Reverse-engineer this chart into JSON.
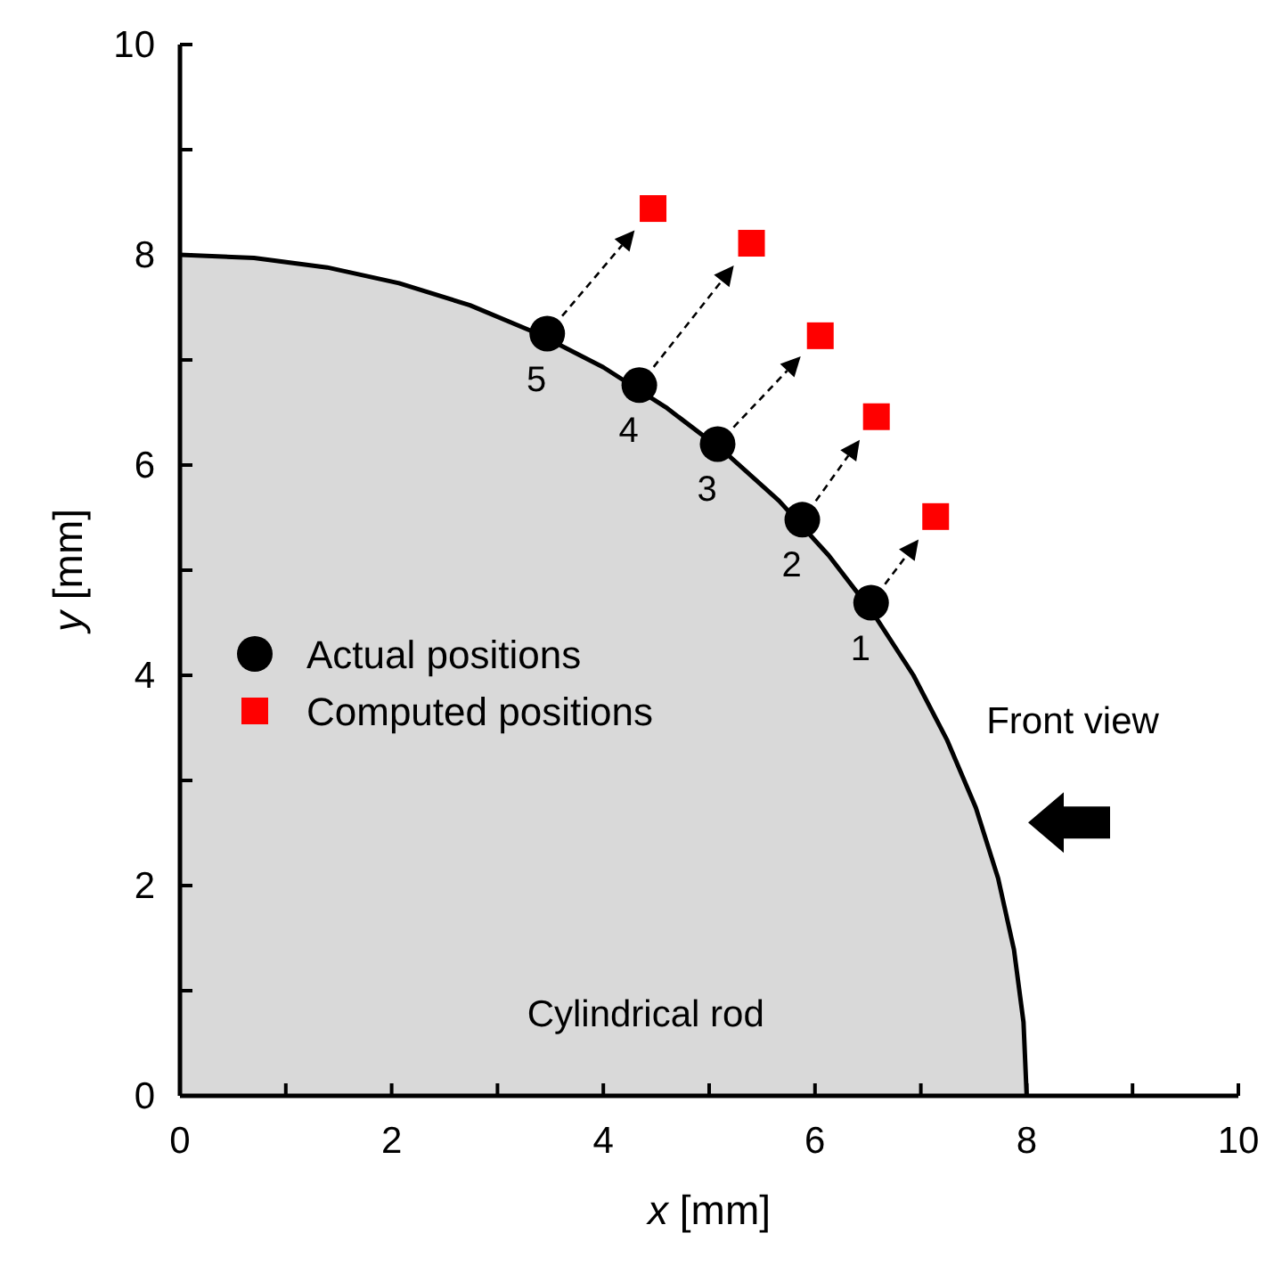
{
  "chart_data": {
    "type": "scatter",
    "xlabel": "x [mm]",
    "ylabel": "y [mm]",
    "xlim": [
      0,
      10
    ],
    "ylim": [
      0,
      10
    ],
    "xticks": [
      0,
      {
        "value": 1,
        "label": null
      },
      2,
      {
        "value": 3,
        "label": null
      },
      4,
      {
        "value": 5,
        "label": null
      },
      6,
      {
        "value": 7,
        "label": null
      },
      8,
      {
        "value": 9,
        "label": null
      },
      10
    ],
    "yticks": [
      0,
      {
        "value": 1,
        "label": null
      },
      2,
      {
        "value": 3,
        "label": null
      },
      4,
      {
        "value": 5,
        "label": null
      },
      6,
      {
        "value": 7,
        "label": null
      },
      8,
      {
        "value": 9,
        "label": null
      },
      10
    ],
    "grid": false,
    "legend": "left",
    "series": [
      {
        "type": "area",
        "color": "#d9d9d9",
        "x": [
          0,
          0.7,
          1.39,
          2.07,
          2.74,
          3.38,
          4.0,
          4.59,
          5.14,
          5.66,
          6.13,
          6.55,
          6.93,
          7.25,
          7.52,
          7.73,
          7.88,
          7.97,
          8
        ],
        "values": [
          8,
          7.97,
          7.88,
          7.73,
          7.52,
          7.25,
          6.93,
          6.55,
          6.13,
          5.66,
          5.14,
          4.59,
          4.0,
          3.38,
          2.74,
          2.07,
          1.39,
          0.7,
          0
        ]
      },
      {
        "name": "Actual positions",
        "marker": "circle",
        "color": "#000000",
        "x": [
          6.53,
          5.88,
          5.08,
          4.34,
          3.47
        ],
        "values": [
          4.69,
          5.48,
          6.2,
          6.76,
          7.25
        ]
      },
      {
        "name": "Computed positions",
        "marker": "square",
        "color": "#ff0000",
        "x": [
          7.14,
          6.58,
          6.05,
          5.4,
          4.47
        ],
        "values": [
          5.51,
          6.46,
          7.23,
          8.11,
          8.44
        ]
      }
    ],
    "annotations": [
      "Cylindrical rod",
      "Front view",
      {
        "text": "1",
        "x": 6.53,
        "y": 4.69
      },
      {
        "text": "2",
        "x": 5.88,
        "y": 5.48
      },
      {
        "text": "3",
        "x": 5.08,
        "y": 6.2
      },
      {
        "text": "4",
        "x": 4.34,
        "y": 6.76
      },
      {
        "text": "5",
        "x": 3.47,
        "y": 7.25
      }
    ]
  }
}
